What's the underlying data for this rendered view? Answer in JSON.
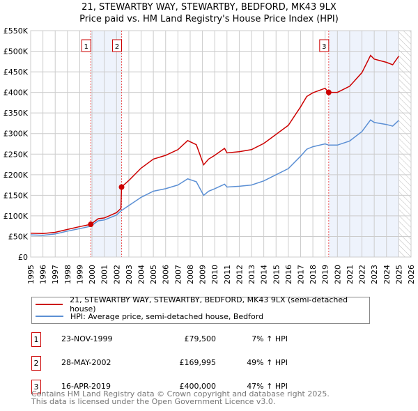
{
  "title": "21, STEWARTBY WAY, STEWARTBY, BEDFORD, MK43 9LX",
  "subtitle": "Price paid vs. HM Land Registry's House Price Index (HPI)",
  "colors": {
    "price": "#cc0000",
    "hpi": "#5b8fd4",
    "shade": "#eef3fc"
  },
  "chart_data": {
    "type": "line",
    "ylim": [
      0,
      550000
    ],
    "xlim": [
      1995,
      2026
    ],
    "yticks": [
      "£0",
      "£50K",
      "£100K",
      "£150K",
      "£200K",
      "£250K",
      "£300K",
      "£350K",
      "£400K",
      "£450K",
      "£500K",
      "£550K"
    ],
    "xticks": [
      "1995",
      "1996",
      "1997",
      "1998",
      "1999",
      "2000",
      "2001",
      "2002",
      "2003",
      "2004",
      "2005",
      "2006",
      "2007",
      "2008",
      "2009",
      "2010",
      "2011",
      "2012",
      "2013",
      "2014",
      "2015",
      "2016",
      "2017",
      "2018",
      "2019",
      "2020",
      "2021",
      "2022",
      "2023",
      "2024",
      "2025",
      "2026"
    ],
    "grid": true,
    "series": [
      {
        "name": "21, STEWARTBY WAY, STEWARTBY, BEDFORD, MK43 9LX (semi-detached house)",
        "color": "#cc0000",
        "x": [
          1995,
          1996,
          1997,
          1998,
          1999,
          1999.9,
          2000.5,
          2001,
          2002,
          2002.35,
          2002.41,
          2003,
          2004,
          2005,
          2006,
          2007,
          2007.8,
          2008.5,
          2009.1,
          2009.5,
          2010,
          2010.8,
          2011,
          2012,
          2013,
          2014,
          2015,
          2016,
          2017,
          2017.5,
          2018,
          2019,
          2019.29,
          2020,
          2021,
          2022,
          2022.7,
          2023,
          2024,
          2024.5,
          2025
        ],
        "y": [
          58000,
          57000,
          60000,
          67000,
          74000,
          79500,
          93000,
          95000,
          108000,
          118000,
          169995,
          186000,
          216000,
          238000,
          247000,
          261000,
          283000,
          273000,
          224000,
          238000,
          247000,
          264000,
          253000,
          256000,
          261000,
          276000,
          298000,
          320000,
          365000,
          390000,
          399000,
          410000,
          400000,
          400000,
          415000,
          448000,
          490000,
          481000,
          473000,
          467000,
          488000
        ]
      },
      {
        "name": "HPI: Average price, semi-detached house, Bedford",
        "color": "#5b8fd4",
        "x": [
          1995,
          1996,
          1997,
          1998,
          1999,
          1999.9,
          2000.5,
          2001,
          2002,
          2002.35,
          2003,
          2004,
          2005,
          2006,
          2007,
          2007.8,
          2008.5,
          2009.1,
          2009.5,
          2010,
          2010.8,
          2011,
          2012,
          2013,
          2014,
          2015,
          2016,
          2017,
          2017.5,
          2018,
          2019,
          2019.29,
          2020,
          2021,
          2022,
          2022.7,
          2023,
          2024,
          2024.5,
          2025
        ],
        "y": [
          54000,
          53000,
          56000,
          63000,
          69000,
          75000,
          88000,
          90000,
          102000,
          112000,
          125000,
          145000,
          160000,
          166000,
          175000,
          190000,
          183000,
          150000,
          160000,
          166000,
          177000,
          170000,
          172000,
          175000,
          185000,
          200000,
          215000,
          245000,
          262000,
          268000,
          275000,
          272000,
          272000,
          282000,
          305000,
          333000,
          327000,
          322000,
          318000,
          332000
        ]
      }
    ],
    "sales": [
      {
        "n": "1",
        "x": 1999.9,
        "y": 79500
      },
      {
        "n": "2",
        "x": 2002.41,
        "y": 169995
      },
      {
        "n": "3",
        "x": 2019.29,
        "y": 400000
      }
    ],
    "shaded": [
      [
        1999.9,
        2002.41
      ],
      [
        2019.29,
        2025.0
      ]
    ],
    "hatched_from": 2025.0,
    "legend": "bottom"
  },
  "sales_table": [
    {
      "n": "1",
      "date": "23-NOV-1999",
      "price": "£79,500",
      "hpi": "7% ↑ HPI"
    },
    {
      "n": "2",
      "date": "28-MAY-2002",
      "price": "£169,995",
      "hpi": "49% ↑ HPI"
    },
    {
      "n": "3",
      "date": "16-APR-2019",
      "price": "£400,000",
      "hpi": "47% ↑ HPI"
    }
  ],
  "footer": [
    "Contains HM Land Registry data © Crown copyright and database right 2025.",
    "This data is licensed under the Open Government Licence v3.0."
  ]
}
